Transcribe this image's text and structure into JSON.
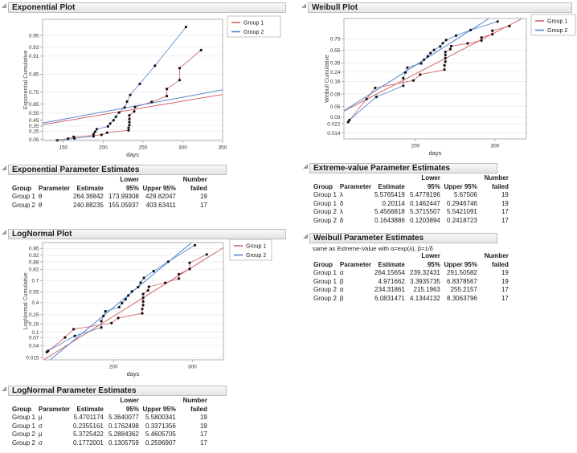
{
  "panels": {
    "exponential_plot": {
      "title": "Exponential Plot"
    },
    "exponential_estimates": {
      "title": "Exponential Parameter Estimates"
    },
    "lognormal_plot": {
      "title": "LogNormal Plot"
    },
    "lognormal_estimates": {
      "title": "LogNormal Parameter Estimates"
    },
    "weibull_plot": {
      "title": "Weibull Plot"
    },
    "extreme_value_estimates": {
      "title": "Extreme-value Parameter Estimates"
    },
    "weibull_estimates": {
      "title": "Weibull Parameter Estimates"
    }
  },
  "tables": {
    "exponential": {
      "title": "Exponential Parameter Estimates",
      "columns": [
        "Group",
        "Parameter",
        "Estimate",
        "Lower 95%",
        "Upper 95%",
        "Number\nfailed"
      ],
      "rows": [
        [
          "Group 1",
          "θ",
          "264.36842",
          "173.99308",
          "429.82047",
          "19"
        ],
        [
          "Group 2",
          "θ",
          "240.88235",
          "155.05937",
          "403.63411",
          "17"
        ]
      ]
    },
    "extreme_value": {
      "title": "Extreme-value Parameter Estimates",
      "columns": [
        "Group",
        "Parameter",
        "Estimate",
        "Lower 95%",
        "Upper 95%",
        "Number\nfailed"
      ],
      "rows": [
        [
          "Group 1",
          "λ",
          "5.5765419",
          "5.4778196",
          "5.67506",
          "19"
        ],
        [
          "Group 1",
          "δ",
          "0.20114",
          "0.1462447",
          "0.2946746",
          "19"
        ],
        [
          "Group 2",
          "λ",
          "5.4566818",
          "5.3715507",
          "5.5421091",
          "17"
        ],
        [
          "Group 2",
          "δ",
          "0.1643886",
          "0.1203894",
          "0.2418723",
          "17"
        ]
      ]
    },
    "weibull": {
      "title": "Weibull Parameter Estimates",
      "note": "same as Extreme-Value with α=exp(λ), β=1/δ",
      "columns": [
        "Group",
        "Parameter",
        "Estimate",
        "Lower 95%",
        "Upper 95%",
        "Number\nfailed"
      ],
      "rows": [
        [
          "Group 1",
          "α",
          "264.15654",
          "239.32431",
          "291.50582",
          "19"
        ],
        [
          "Group 1",
          "β",
          "4.971662",
          "3.3935735",
          "6.8378567",
          "19"
        ],
        [
          "Group 2",
          "α",
          "234.31861",
          "215.1963",
          "255.2157",
          "17"
        ],
        [
          "Group 2",
          "β",
          "6.0831471",
          "4.1344132",
          "8.3063796",
          "17"
        ]
      ]
    },
    "lognormal": {
      "title": "LogNormal Parameter Estimates",
      "columns": [
        "Group",
        "Parameter",
        "Estimate",
        "Lower 95%",
        "Upper 95%",
        "Number\nfailed"
      ],
      "rows": [
        [
          "Group 1",
          "μ",
          "5.4701174",
          "5.3640077",
          "5.5800341",
          "19"
        ],
        [
          "Group 1",
          "σ",
          "0.2355161",
          "0.1762498",
          "0.3371356",
          "19"
        ],
        [
          "Group 2",
          "μ",
          "5.3725422",
          "5.2884362",
          "5.4605705",
          "17"
        ],
        [
          "Group 2",
          "σ",
          "0.1772001",
          "0.1305759",
          "0.2596907",
          "17"
        ]
      ]
    }
  },
  "chart_data": {
    "type": "probability-plot-set",
    "groups": [
      {
        "name": "Group 1",
        "color": "#d5646a",
        "points_days_prob": [
          [
            142,
            0.0238
          ],
          [
            156,
            0.0714
          ],
          [
            163,
            0.119
          ],
          [
            198,
            0.1667
          ],
          [
            205,
            0.2158
          ],
          [
            232,
            0.2664
          ],
          [
            232,
            0.317
          ],
          [
            233,
            0.3676
          ],
          [
            233,
            0.4182
          ],
          [
            233,
            0.4688
          ],
          [
            233,
            0.5194
          ],
          [
            239,
            0.5699
          ],
          [
            240,
            0.6205
          ],
          [
            261,
            0.6711
          ],
          [
            280,
            0.7217
          ],
          [
            280,
            0.7723
          ],
          [
            296,
            0.8229
          ],
          [
            296,
            0.8735
          ],
          [
            323,
            0.9241
          ]
        ]
      },
      {
        "name": "Group 2",
        "color": "#5585d0",
        "points_days_prob": [
          [
            143,
            0.0263
          ],
          [
            164,
            0.0789
          ],
          [
            188,
            0.1316
          ],
          [
            188,
            0.1842
          ],
          [
            190,
            0.2368
          ],
          [
            192,
            0.2895
          ],
          [
            206,
            0.3421
          ],
          [
            209,
            0.3947
          ],
          [
            213,
            0.4474
          ],
          [
            216,
            0.5
          ],
          [
            220,
            0.5559
          ],
          [
            227,
            0.6151
          ],
          [
            230,
            0.6743
          ],
          [
            234,
            0.7303
          ],
          [
            246,
            0.8026
          ],
          [
            265,
            0.8816
          ],
          [
            304,
            0.9605
          ]
        ]
      }
    ],
    "plots": [
      {
        "id": "exponential",
        "title": "Exponential Plot",
        "xlabel": "days",
        "ylabel": "Exponential Cumulative",
        "xscale": "linear",
        "xdomain": [
          124,
          350
        ],
        "xticks": [
          "150",
          "200",
          "250",
          "300",
          "350"
        ],
        "ydomain_transformed": [
          0.02,
          3.45
        ],
        "yticks": [
          "0.05",
          "0.25",
          "0.35",
          "0.45",
          "0.55",
          "0.65",
          "0.75",
          "0.85",
          "0.91",
          "0.93",
          "0.95"
        ],
        "legend": [
          "Group 1",
          "Group 2"
        ],
        "fits": [
          {
            "group": "Group 1",
            "theta": 264.36842
          },
          {
            "group": "Group 2",
            "theta": 240.88235
          }
        ]
      },
      {
        "id": "weibull",
        "title": "Weibull Plot",
        "xlabel": "days",
        "ylabel": "Weibull Cumulative",
        "xscale": "log",
        "xdomain": [
          139,
          352
        ],
        "xticks": [
          "200",
          "300"
        ],
        "ydomain_transformed": [
          -4.55,
          1.32
        ],
        "yticks": [
          "0.014",
          "0.022",
          "0.03",
          "0.05",
          "0.09",
          "0.16",
          "0.24",
          "0.35",
          "0.55",
          "0.75"
        ],
        "legend": [
          "Group 1",
          "Group 2"
        ],
        "fits": [
          {
            "group": "Group 1",
            "alpha": 264.15654,
            "beta": 4.971662
          },
          {
            "group": "Group 2",
            "alpha": 234.31861,
            "beta": 6.0831471
          }
        ]
      },
      {
        "id": "lognormal",
        "title": "LogNormal Plot",
        "xlabel": "days",
        "ylabel": "LogNormal Cumulative",
        "xscale": "log",
        "xdomain": [
          139,
          352
        ],
        "xticks": [
          "200",
          "300"
        ],
        "ydomain_transformed": [
          -2.25,
          1.85
        ],
        "yticks": [
          "0.015",
          "0.04",
          "0.07",
          "0.1",
          "0.16",
          "0.25",
          "0.4",
          "0.55",
          "0.7",
          "0.82",
          "0.88",
          "0.92",
          "0.95"
        ],
        "legend": [
          "Group 1",
          "Group 2"
        ],
        "fits": [
          {
            "group": "Group 1",
            "mu": 5.4701174,
            "sigma": 0.2355161
          },
          {
            "group": "Group 2",
            "mu": 5.3725422,
            "sigma": 0.1772001
          }
        ]
      }
    ]
  }
}
